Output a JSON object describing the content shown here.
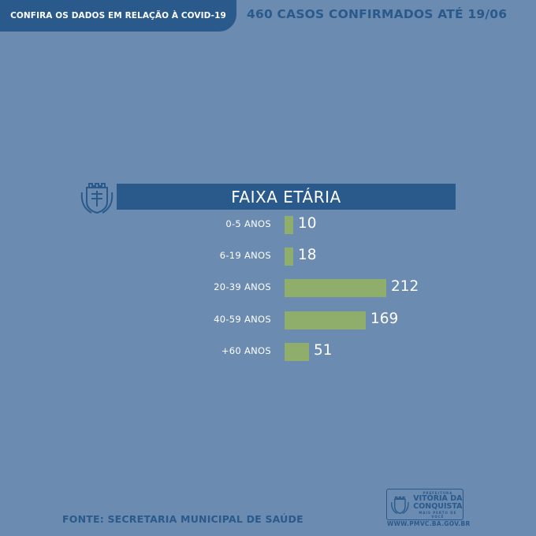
{
  "header": {
    "left_text": "CONFIRA OS DADOS EM RELAÇÃO À COVID-19",
    "right_text": "460 CASOS CONFIRMADOS ATÉ 19/06"
  },
  "footer": {
    "source": "FONTE: SECRETARIA MUNICIPAL DE SAÚDE",
    "logo_small": "PREFEITURA",
    "logo_line1": "VITÓRIA DA",
    "logo_line2": "CONQUISTA",
    "logo_tagline": "MAIS PERTO DE VOCÊ",
    "url": "WWW.PMVC.BA.GOV.BR"
  },
  "colors": {
    "background": "#6b8bb0",
    "accent": "#2a5a8c",
    "bar": "#8fae6b"
  },
  "icons": {
    "crest": "coat-of-arms-icon"
  },
  "chart_data": {
    "type": "bar",
    "orientation": "horizontal",
    "title": "FAIXA ETÁRIA",
    "categories": [
      "0-5 ANOS",
      "6-19 ANOS",
      "20-39 ANOS",
      "40-59 ANOS",
      "+60 ANOS"
    ],
    "values": [
      10,
      18,
      212,
      169,
      51
    ],
    "data_labels": [
      "10",
      "18",
      "212",
      "169",
      "51"
    ],
    "xlim": [
      0,
      212
    ],
    "grid": false,
    "legend": "none"
  }
}
